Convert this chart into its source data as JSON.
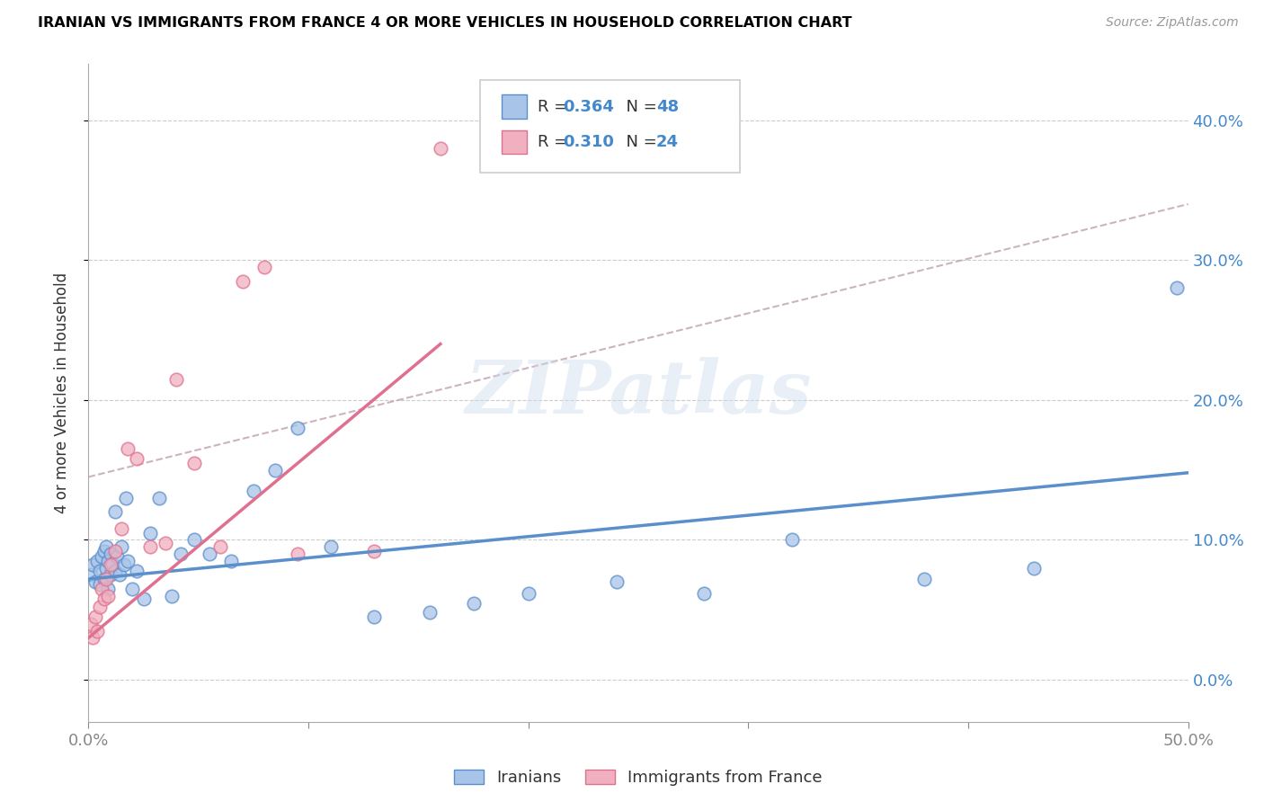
{
  "title": "IRANIAN VS IMMIGRANTS FROM FRANCE 4 OR MORE VEHICLES IN HOUSEHOLD CORRELATION CHART",
  "source": "Source: ZipAtlas.com",
  "ylabel": "4 or more Vehicles in Household",
  "xmin": 0.0,
  "xmax": 0.5,
  "ymin": -0.03,
  "ymax": 0.44,
  "xticks": [
    0.0,
    0.1,
    0.2,
    0.3,
    0.4,
    0.5
  ],
  "xticklabels": [
    "0.0%",
    "",
    "",
    "",
    "",
    "50.0%"
  ],
  "yticks": [
    0.0,
    0.1,
    0.2,
    0.3,
    0.4
  ],
  "yticklabels_right": [
    "0.0%",
    "10.0%",
    "20.0%",
    "30.0%",
    "40.0%"
  ],
  "legend_labels_bottom": [
    "Iranians",
    "Immigrants from France"
  ],
  "watermark": "ZIPatlas",
  "blue_color": "#5b8fcc",
  "pink_color": "#e07090",
  "blue_scatter_color": "#a8c4e8",
  "pink_scatter_color": "#f0b0c0",
  "iranians_x": [
    0.001,
    0.002,
    0.003,
    0.004,
    0.005,
    0.005,
    0.006,
    0.007,
    0.007,
    0.008,
    0.008,
    0.009,
    0.009,
    0.01,
    0.01,
    0.011,
    0.012,
    0.012,
    0.013,
    0.014,
    0.015,
    0.016,
    0.017,
    0.018,
    0.02,
    0.022,
    0.025,
    0.028,
    0.032,
    0.038,
    0.042,
    0.048,
    0.055,
    0.065,
    0.075,
    0.085,
    0.095,
    0.11,
    0.13,
    0.155,
    0.175,
    0.2,
    0.24,
    0.28,
    0.32,
    0.38,
    0.43,
    0.495
  ],
  "iranians_y": [
    0.075,
    0.082,
    0.07,
    0.085,
    0.068,
    0.078,
    0.088,
    0.072,
    0.092,
    0.08,
    0.095,
    0.065,
    0.085,
    0.075,
    0.09,
    0.083,
    0.12,
    0.078,
    0.088,
    0.075,
    0.095,
    0.082,
    0.13,
    0.085,
    0.065,
    0.078,
    0.058,
    0.105,
    0.13,
    0.06,
    0.09,
    0.1,
    0.09,
    0.085,
    0.135,
    0.15,
    0.18,
    0.095,
    0.045,
    0.048,
    0.055,
    0.062,
    0.07,
    0.062,
    0.1,
    0.072,
    0.08,
    0.28
  ],
  "france_x": [
    0.001,
    0.002,
    0.003,
    0.004,
    0.005,
    0.006,
    0.007,
    0.008,
    0.009,
    0.01,
    0.012,
    0.015,
    0.018,
    0.022,
    0.028,
    0.035,
    0.04,
    0.048,
    0.06,
    0.07,
    0.08,
    0.095,
    0.13,
    0.16
  ],
  "france_y": [
    0.04,
    0.03,
    0.045,
    0.035,
    0.052,
    0.065,
    0.058,
    0.072,
    0.06,
    0.082,
    0.092,
    0.108,
    0.165,
    0.158,
    0.095,
    0.098,
    0.215,
    0.155,
    0.095,
    0.285,
    0.295,
    0.09,
    0.092,
    0.38
  ],
  "blue_line_x": [
    0.0,
    0.5
  ],
  "blue_line_y": [
    0.072,
    0.148
  ],
  "pink_line_x": [
    0.0,
    0.16
  ],
  "pink_line_y": [
    0.03,
    0.24
  ],
  "gray_dash_line_x": [
    0.0,
    0.5
  ],
  "gray_dash_line_y": [
    0.145,
    0.34
  ]
}
